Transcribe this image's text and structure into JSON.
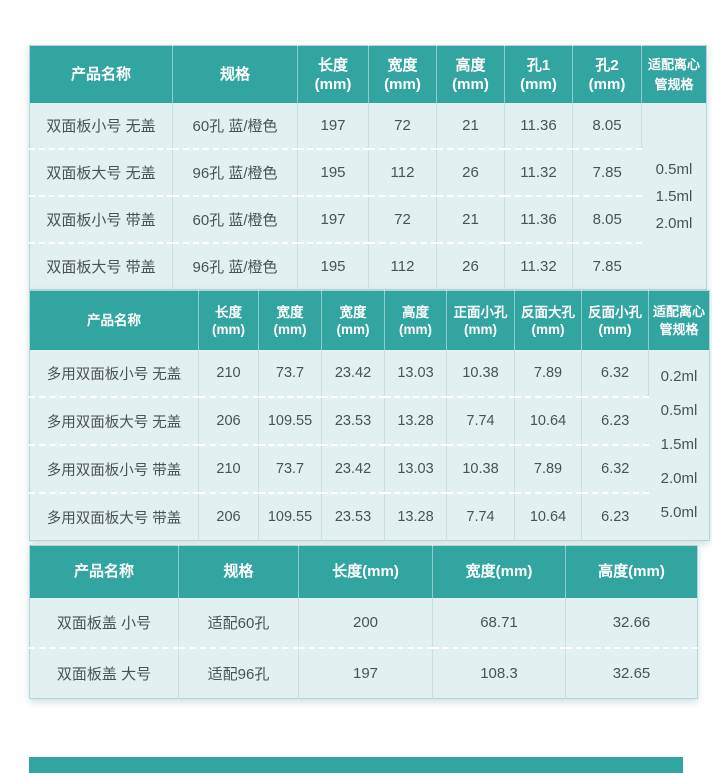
{
  "colors": {
    "header_bg": "#32a5a1",
    "header_text": "#ffffff",
    "row_bg": "#e2f0f1",
    "body_text": "#4b5254",
    "divider": "#c8dfe2",
    "dash": "#ffffff",
    "table_border": "#b3d5d8"
  },
  "tables": [
    {
      "id": "double-sided-panel-specs",
      "columns": [
        {
          "label": "产品名称"
        },
        {
          "label": "规格"
        },
        {
          "label": "长度",
          "unit": "(mm)"
        },
        {
          "label": "宽度",
          "unit": "(mm)"
        },
        {
          "label": "高度",
          "unit": "(mm)"
        },
        {
          "label": "孔1",
          "unit": "(mm)"
        },
        {
          "label": "孔2",
          "unit": "(mm)"
        },
        {
          "label": "适配离心管规格",
          "small": true
        }
      ],
      "rows": [
        [
          "双面板小号 无盖",
          "60孔 蓝/橙色",
          "197",
          "72",
          "21",
          "11.36",
          "8.05"
        ],
        [
          "双面板大号 无盖",
          "96孔 蓝/橙色",
          "195",
          "112",
          "26",
          "11.32",
          "7.85"
        ],
        [
          "双面板小号 带盖",
          "60孔 蓝/橙色",
          "197",
          "72",
          "21",
          "11.36",
          "8.05"
        ],
        [
          "双面板大号 带盖",
          "96孔 蓝/橙色",
          "195",
          "112",
          "26",
          "11.32",
          "7.85"
        ]
      ],
      "merged_column": {
        "lines": [
          "0.5ml",
          "1.5ml",
          "2.0ml"
        ]
      }
    },
    {
      "id": "multi-use-double-sided-panel-specs",
      "columns": [
        {
          "label": "产品名称"
        },
        {
          "label": "长度",
          "unit": "(mm)"
        },
        {
          "label": "宽度",
          "unit": "(mm)"
        },
        {
          "label": "宽度",
          "unit": "(mm)"
        },
        {
          "label": "高度",
          "unit": "(mm)"
        },
        {
          "label": "正面小孔",
          "unit": "(mm)"
        },
        {
          "label": "反面大孔",
          "unit": "(mm)"
        },
        {
          "label": "反面小孔",
          "unit": "(mm)"
        },
        {
          "label": "适配离心管规格",
          "small": true
        }
      ],
      "rows": [
        [
          "多用双面板小号 无盖",
          "210",
          "73.7",
          "23.42",
          "13.03",
          "10.38",
          "7.89",
          "6.32"
        ],
        [
          "多用双面板大号 无盖",
          "206",
          "109.55",
          "23.53",
          "13.28",
          "7.74",
          "10.64",
          "6.23"
        ],
        [
          "多用双面板小号 带盖",
          "210",
          "73.7",
          "23.42",
          "13.03",
          "10.38",
          "7.89",
          "6.32"
        ],
        [
          "多用双面板大号 带盖",
          "206",
          "109.55",
          "23.53",
          "13.28",
          "7.74",
          "10.64",
          "6.23"
        ]
      ],
      "merged_column": {
        "lines": [
          "0.2ml",
          "0.5ml",
          "1.5ml",
          "2.0ml",
          "5.0ml"
        ]
      }
    },
    {
      "id": "panel-lid-specs",
      "columns": [
        {
          "label": "产品名称"
        },
        {
          "label": "规格"
        },
        {
          "label": "长度(mm)"
        },
        {
          "label": "宽度(mm)"
        },
        {
          "label": "高度(mm)"
        }
      ],
      "rows": [
        [
          "双面板盖 小号",
          "适配60孔",
          "200",
          "68.71",
          "32.66"
        ],
        [
          "双面板盖 大号",
          "适配96孔",
          "197",
          "108.3",
          "32.65"
        ]
      ],
      "merged_column": null
    }
  ]
}
